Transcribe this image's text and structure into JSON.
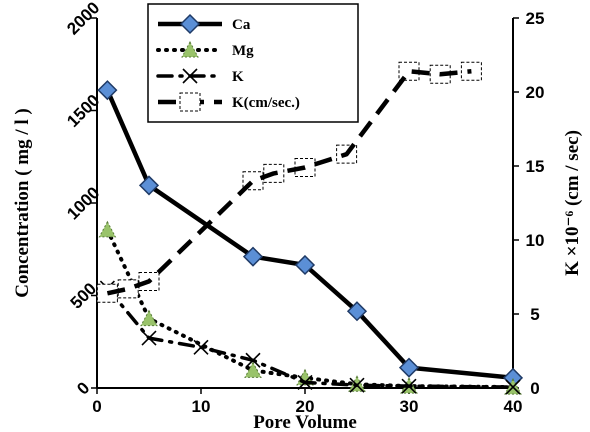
{
  "chart_data": {
    "type": "line",
    "xlabel": "Pore Volume",
    "ylabel_left": "Concentration ( mg / l )",
    "ylabel_right": "K ×10⁻⁶ (cm / sec)",
    "xlim": [
      0,
      40
    ],
    "ylim_left": [
      0,
      2000
    ],
    "ylim_right": [
      0,
      25
    ],
    "x_ticks": [
      "0",
      "10",
      "20",
      "30",
      "40"
    ],
    "y_left_ticks": [
      "0",
      "500",
      "1000",
      "1500",
      "2000"
    ],
    "y_right_ticks": [
      "0",
      "5",
      "10",
      "15",
      "20",
      "25"
    ],
    "legend_position": "top-center",
    "series": [
      {
        "name": "Ca",
        "axis": "left",
        "color": "#000000",
        "marker": "diamond",
        "marker_color": "#5b8fd6",
        "x": [
          1,
          5,
          15,
          20,
          25,
          30,
          40
        ],
        "y": [
          1610,
          1095,
          710,
          665,
          415,
          110,
          55
        ]
      },
      {
        "name": "Mg",
        "axis": "left",
        "color": "#000000",
        "marker": "triangle",
        "marker_color": "#99c36a",
        "x": [
          1,
          5,
          15,
          20,
          25,
          30,
          40
        ],
        "y": [
          855,
          375,
          95,
          55,
          20,
          10,
          5
        ]
      },
      {
        "name": "K",
        "axis": "left",
        "color": "#000000",
        "marker": "x",
        "x": [
          1,
          5,
          10,
          15,
          20,
          25,
          30,
          40
        ],
        "y": [
          540,
          270,
          220,
          150,
          30,
          15,
          10,
          5
        ]
      },
      {
        "name": "K(cm/sec.)",
        "axis": "right",
        "color": "#000000",
        "marker": "dashed-box",
        "x": [
          1,
          3,
          5,
          15,
          17,
          20,
          24,
          30,
          33,
          36
        ],
        "y": [
          6.4,
          6.7,
          7.2,
          14.0,
          14.5,
          14.9,
          15.8,
          21.4,
          21.2,
          21.4
        ]
      }
    ]
  }
}
